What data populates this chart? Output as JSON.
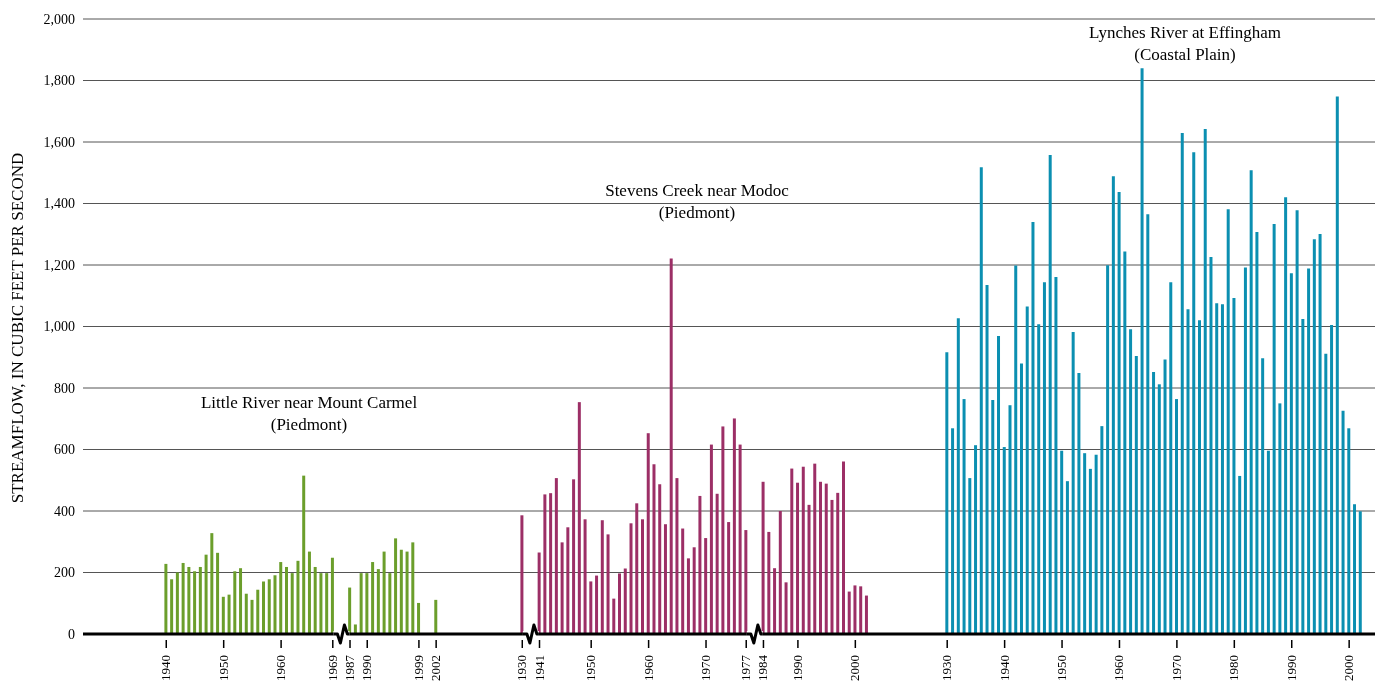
{
  "chart_data": {
    "type": "bar",
    "ylabel": "STREAMFLOW, IN CUBIC FEET PER SECOND",
    "annotations": [
      "Little River near Mount Carmel\n(Piedmont)",
      "Stevens Creek near Modoc\n(Piedmont)",
      "Lynches River at Effingham\n(Coastal Plain)"
    ],
    "categories": [
      null,
      null,
      null,
      null,
      null,
      null,
      null,
      null,
      null,
      null,
      null,
      null,
      null,
      null,
      "1940",
      null,
      null,
      null,
      null,
      null,
      null,
      null,
      null,
      null,
      "1950",
      null,
      null,
      null,
      null,
      null,
      null,
      null,
      null,
      null,
      "1960",
      null,
      null,
      null,
      null,
      null,
      null,
      null,
      null,
      "1969",
      null,
      null,
      "1987",
      null,
      null,
      "1990",
      null,
      null,
      null,
      null,
      null,
      null,
      null,
      null,
      "1999",
      null,
      null,
      "2002",
      null,
      null,
      null,
      null,
      null,
      null,
      null,
      null,
      null,
      null,
      null,
      null,
      null,
      null,
      "1930",
      null,
      null,
      "1941",
      null,
      null,
      null,
      null,
      null,
      null,
      null,
      null,
      "1950",
      null,
      null,
      null,
      null,
      null,
      null,
      null,
      null,
      null,
      "1960",
      null,
      null,
      null,
      null,
      null,
      null,
      null,
      null,
      null,
      "1970",
      null,
      null,
      null,
      null,
      null,
      null,
      "1977",
      null,
      null,
      "1984",
      null,
      null,
      null,
      null,
      null,
      "1990",
      null,
      null,
      null,
      null,
      null,
      null,
      null,
      null,
      null,
      "2000",
      null,
      null,
      null,
      null,
      null,
      null,
      null,
      null,
      null,
      null,
      null,
      null,
      null,
      null,
      null,
      "1930",
      null,
      null,
      null,
      null,
      null,
      null,
      null,
      null,
      null,
      "1940",
      null,
      null,
      null,
      null,
      null,
      null,
      null,
      null,
      null,
      "1950",
      null,
      null,
      null,
      null,
      null,
      null,
      null,
      null,
      null,
      "1960",
      null,
      null,
      null,
      null,
      null,
      null,
      null,
      null,
      null,
      "1970",
      null,
      null,
      null,
      null,
      null,
      null,
      null,
      null,
      null,
      "1980",
      null,
      null,
      null,
      null,
      null,
      null,
      null,
      null,
      null,
      "1990",
      null,
      null,
      null,
      null,
      null,
      null,
      null,
      null,
      null,
      "2000",
      null,
      null,
      null,
      null
    ],
    "series": [
      {
        "color": "#6b9e2b",
        "values": [
          null,
          null,
          null,
          null,
          null,
          null,
          null,
          null,
          null,
          null,
          null,
          null,
          null,
          null,
          228,
          178,
          200,
          231,
          218,
          204,
          218,
          258,
          328,
          264,
          121,
          128,
          204,
          214,
          131,
          111,
          144,
          171,
          178,
          191,
          234,
          218,
          198,
          238,
          515,
          268,
          218,
          198,
          198,
          248,
          null,
          null,
          151,
          31,
          198,
          198,
          234,
          211,
          268,
          198,
          311,
          274,
          268,
          298,
          101,
          null,
          null,
          111,
          null,
          null,
          null,
          null,
          null,
          null,
          null,
          null,
          null,
          null,
          null,
          null,
          null,
          null,
          null,
          null,
          null,
          null,
          null,
          null,
          null,
          null,
          null,
          null,
          null,
          null,
          null,
          null,
          null,
          null,
          null,
          null,
          null,
          null,
          null,
          null,
          null,
          null,
          null,
          null,
          null,
          null,
          null,
          null,
          null,
          null,
          null,
          null,
          null,
          null,
          null,
          null,
          null,
          null,
          null,
          null,
          null,
          null,
          null,
          null,
          null,
          null,
          null,
          null,
          null,
          null,
          null,
          null,
          null,
          null,
          null,
          null,
          null,
          null,
          null,
          null,
          null,
          null,
          null,
          null,
          null,
          null,
          null,
          null,
          null,
          null,
          null,
          null,
          null,
          null,
          null,
          null,
          null,
          null,
          null,
          null,
          null,
          null,
          null,
          null,
          null,
          null,
          null,
          null,
          null,
          null,
          null,
          null,
          null,
          null,
          null,
          null,
          null,
          null,
          null,
          null,
          null,
          null,
          null,
          null,
          null,
          null,
          null,
          null,
          null,
          null,
          null,
          null,
          null,
          null,
          null,
          null,
          null,
          null,
          null,
          null,
          null,
          null,
          null,
          null,
          null,
          null,
          null,
          null,
          null,
          null,
          null,
          null,
          null,
          null,
          null,
          null,
          null,
          null,
          null,
          null,
          null,
          null,
          null,
          null,
          null,
          null,
          null
        ]
      },
      {
        "color": "#9c2f66",
        "values": [
          null,
          null,
          null,
          null,
          null,
          null,
          null,
          null,
          null,
          null,
          null,
          null,
          null,
          null,
          null,
          null,
          null,
          null,
          null,
          null,
          null,
          null,
          null,
          null,
          null,
          null,
          null,
          null,
          null,
          null,
          null,
          null,
          null,
          null,
          null,
          null,
          null,
          null,
          null,
          null,
          null,
          null,
          null,
          null,
          null,
          null,
          null,
          null,
          null,
          null,
          null,
          null,
          null,
          null,
          null,
          null,
          null,
          null,
          null,
          null,
          null,
          null,
          null,
          null,
          null,
          null,
          null,
          null,
          null,
          null,
          null,
          null,
          null,
          null,
          null,
          null,
          386,
          null,
          null,
          265,
          454,
          458,
          507,
          298,
          347,
          503,
          754,
          373,
          171,
          190,
          370,
          324,
          115,
          197,
          213,
          360,
          425,
          373,
          653,
          552,
          487,
          357,
          1221,
          507,
          343,
          246,
          282,
          449,
          312,
          616,
          456,
          675,
          364,
          701,
          616,
          338,
          null,
          null,
          495,
          332,
          214,
          400,
          168,
          538,
          492,
          544,
          420,
          554,
          495,
          489,
          436,
          459,
          561,
          138,
          158,
          155,
          125,
          null,
          null,
          null,
          null,
          null,
          null,
          null,
          null,
          null,
          null,
          null,
          null,
          null,
          null,
          null,
          null,
          null,
          null,
          null,
          null,
          null,
          null,
          null,
          null,
          null,
          null,
          null,
          null,
          null,
          null,
          null,
          null,
          null,
          null,
          null,
          null,
          null,
          null,
          null,
          null,
          null,
          null,
          null,
          null,
          null,
          null,
          null,
          null,
          null,
          null,
          null,
          null,
          null,
          null,
          null,
          null,
          null,
          null,
          null,
          null,
          null,
          null,
          null,
          null,
          null,
          null,
          null,
          null,
          null,
          null,
          null,
          null,
          null,
          null,
          null,
          null,
          null,
          null,
          null,
          null,
          null,
          null,
          null,
          null,
          null,
          null,
          null,
          null
        ]
      },
      {
        "color": "#0b8fb1",
        "values": [
          null,
          null,
          null,
          null,
          null,
          null,
          null,
          null,
          null,
          null,
          null,
          null,
          null,
          null,
          null,
          null,
          null,
          null,
          null,
          null,
          null,
          null,
          null,
          null,
          null,
          null,
          null,
          null,
          null,
          null,
          null,
          null,
          null,
          null,
          null,
          null,
          null,
          null,
          null,
          null,
          null,
          null,
          null,
          null,
          null,
          null,
          null,
          null,
          null,
          null,
          null,
          null,
          null,
          null,
          null,
          null,
          null,
          null,
          null,
          null,
          null,
          null,
          null,
          null,
          null,
          null,
          null,
          null,
          null,
          null,
          null,
          null,
          null,
          null,
          null,
          null,
          null,
          null,
          null,
          null,
          null,
          null,
          null,
          null,
          null,
          null,
          null,
          null,
          null,
          null,
          null,
          null,
          null,
          null,
          null,
          null,
          null,
          null,
          null,
          null,
          null,
          null,
          null,
          null,
          null,
          null,
          null,
          null,
          null,
          null,
          null,
          null,
          null,
          null,
          null,
          null,
          null,
          null,
          null,
          null,
          null,
          null,
          null,
          null,
          null,
          null,
          null,
          null,
          null,
          null,
          null,
          null,
          null,
          null,
          null,
          null,
          null,
          null,
          null,
          null,
          null,
          null,
          null,
          null,
          null,
          null,
          null,
          null,
          null,
          null,
          916,
          669,
          1027,
          764,
          507,
          614,
          1518,
          1135,
          761,
          969,
          608,
          744,
          1198,
          880,
          1065,
          1340,
          1007,
          1144,
          1558,
          1161,
          596,
          497,
          982,
          849,
          588,
          537,
          583,
          676,
          1199,
          1489,
          1437,
          1244,
          991,
          904,
          1840,
          1365,
          852,
          812,
          893,
          1144,
          764,
          1629,
          1056,
          1567,
          1020,
          1642,
          1226,
          1076,
          1072,
          1381,
          1093,
          514,
          1192,
          1508,
          1307,
          897,
          596,
          1333,
          750,
          1420,
          1173,
          1378,
          1024,
          1189,
          1284,
          1301,
          911,
          1005,
          1748,
          726,
          669,
          422,
          399,
          null,
          null
        ]
      }
    ],
    "ylim": [
      0,
      2000
    ],
    "yticks": [
      0,
      {
        "value": 200,
        "label": "200"
      },
      {
        "value": 400,
        "label": "400"
      },
      {
        "value": 600,
        "label": "600"
      },
      {
        "value": 800,
        "label": "800"
      },
      {
        "value": 1000,
        "label": "1,000"
      },
      {
        "value": 1200,
        "label": "1,200"
      },
      {
        "value": 1400,
        "label": "1,400"
      },
      {
        "value": 1600,
        "label": "1,600"
      },
      {
        "value": 1800,
        "label": "1,800"
      },
      {
        "value": 2000,
        "label": "2,000"
      }
    ],
    "grid": "y"
  }
}
